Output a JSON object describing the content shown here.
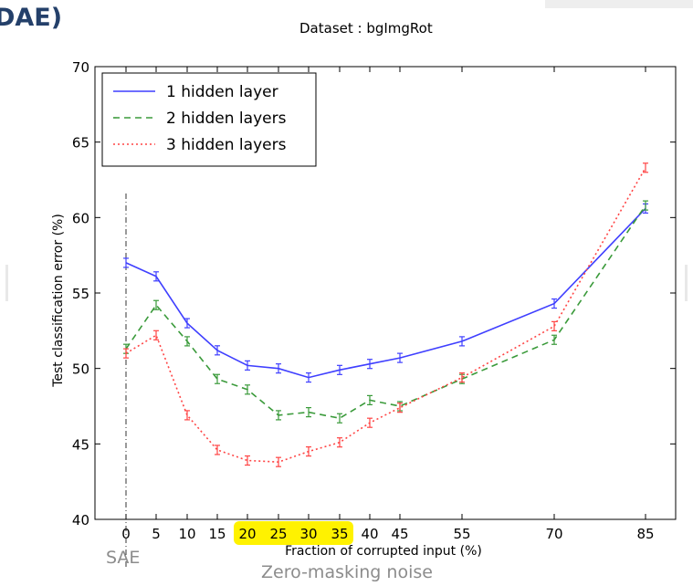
{
  "slide": {
    "title_fragment": "DAE)",
    "sae_label": "SAE",
    "caption": "Zero-masking noise"
  },
  "chart_data": {
    "type": "line",
    "title": "Dataset : bgImgRot",
    "xlabel": "Fraction of corrupted input (%)",
    "ylabel": "Test classification error (%)",
    "x_ticks": [
      0,
      5,
      10,
      15,
      20,
      25,
      30,
      35,
      40,
      45,
      55,
      70,
      85
    ],
    "x_tick_labels": [
      "0",
      "5",
      "10",
      "15",
      "20",
      "25",
      "30",
      "35",
      "40",
      "45",
      "55",
      "70",
      "85"
    ],
    "highlighted_ticks": [
      "20",
      "25",
      "30",
      "35"
    ],
    "highlight_color": "#fff200",
    "ylim": [
      40,
      70
    ],
    "y_ticks": [
      40,
      45,
      50,
      55,
      60,
      65,
      70
    ],
    "y_tick_labels": [
      "40",
      "45",
      "50",
      "55",
      "60",
      "65",
      "70"
    ],
    "grid": false,
    "legend_position": "top-left",
    "reference_line_x": 0,
    "series": [
      {
        "name": "1 hidden layer",
        "color": "#3f3fff",
        "style": "solid",
        "x": [
          0,
          5,
          10,
          15,
          20,
          25,
          30,
          35,
          40,
          45,
          55,
          70,
          85
        ],
        "y": [
          57.0,
          56.1,
          53.0,
          51.2,
          50.2,
          50.0,
          49.4,
          49.9,
          50.3,
          50.7,
          51.8,
          54.3,
          60.6
        ]
      },
      {
        "name": "2 hidden layers",
        "color": "#3a9a3a",
        "style": "dashed",
        "x": [
          0,
          5,
          10,
          15,
          20,
          25,
          30,
          35,
          40,
          45,
          55,
          70,
          85
        ],
        "y": [
          51.3,
          54.2,
          51.8,
          49.3,
          48.6,
          46.9,
          47.1,
          46.7,
          47.9,
          47.5,
          49.3,
          51.9,
          60.8
        ]
      },
      {
        "name": "3 hidden layers",
        "color": "#ff4444",
        "style": "dotted",
        "x": [
          0,
          5,
          10,
          15,
          20,
          25,
          30,
          35,
          40,
          45,
          55,
          70,
          85
        ],
        "y": [
          51.0,
          52.2,
          46.9,
          44.6,
          43.9,
          43.8,
          44.5,
          45.1,
          46.4,
          47.4,
          49.4,
          52.8,
          63.3
        ]
      }
    ]
  }
}
